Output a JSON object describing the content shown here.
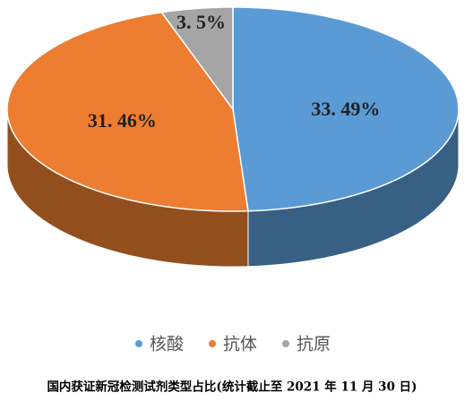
{
  "chart_data": {
    "type": "pie3d",
    "title": "国内获证新冠检测试剂类型占比(统计截止至 2021 年 11 月 30 日)",
    "categories": [
      "核酸",
      "抗体",
      "抗原"
    ],
    "values": [
      33.49,
      31.46,
      3.5
    ],
    "value_labels": [
      "33. 49%",
      "31. 46%",
      "3. 5%"
    ],
    "colors": [
      "#5b9bd5",
      "#ed7d31",
      "#a5a5a5"
    ],
    "legend": "bottom"
  }
}
